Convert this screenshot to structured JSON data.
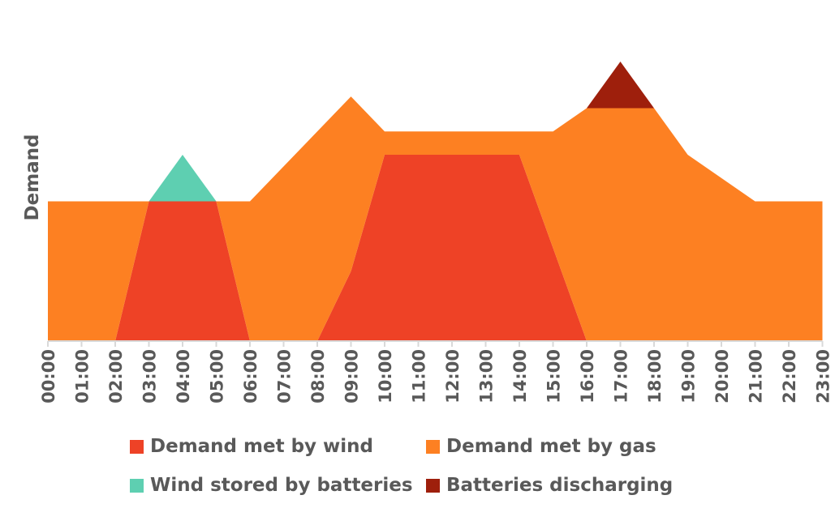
{
  "chart_data": {
    "type": "area",
    "ylabel": "Demand",
    "xlabel": "",
    "categories": [
      "00:00",
      "01:00",
      "02:00",
      "03:00",
      "04:00",
      "05:00",
      "06:00",
      "07:00",
      "08:00",
      "09:00",
      "10:00",
      "11:00",
      "12:00",
      "13:00",
      "14:00",
      "15:00",
      "16:00",
      "17:00",
      "18:00",
      "19:00",
      "20:00",
      "21:00",
      "22:00",
      "23:00"
    ],
    "ylim": [
      0,
      6
    ],
    "series": [
      {
        "name": "Demand met by wind",
        "color": "#ee4226",
        "values": [
          0,
          0,
          0,
          3,
          3,
          3,
          0,
          0,
          0,
          1.5,
          4,
          4,
          4,
          4,
          4,
          2,
          0,
          0,
          0,
          0,
          0,
          0,
          0,
          0
        ]
      },
      {
        "name": "Demand met by gas",
        "color": "#fd8022",
        "values": [
          3,
          3,
          3,
          0,
          0,
          0,
          3,
          3.75,
          4.5,
          3.75,
          0.5,
          0.5,
          0.5,
          0.5,
          0.5,
          2.5,
          5,
          5,
          5,
          4,
          3.5,
          3,
          3,
          3
        ]
      },
      {
        "name": "Wind stored by batteries",
        "color": "#5ecfb1",
        "values": [
          0,
          0,
          0,
          0,
          1,
          0,
          0,
          0,
          0,
          0,
          0,
          0,
          0,
          0,
          0,
          0,
          0,
          0,
          0,
          0,
          0,
          0,
          0,
          0
        ]
      },
      {
        "name": "Batteries discharging",
        "color": "#9e1f0c",
        "values": [
          0,
          0,
          0,
          0,
          0,
          0,
          0,
          0,
          0,
          0,
          0,
          0,
          0,
          0,
          0,
          0,
          0,
          1,
          0,
          0,
          0,
          0,
          0,
          0
        ]
      }
    ],
    "stacked": true,
    "grid": false,
    "legend_position": "bottom"
  }
}
